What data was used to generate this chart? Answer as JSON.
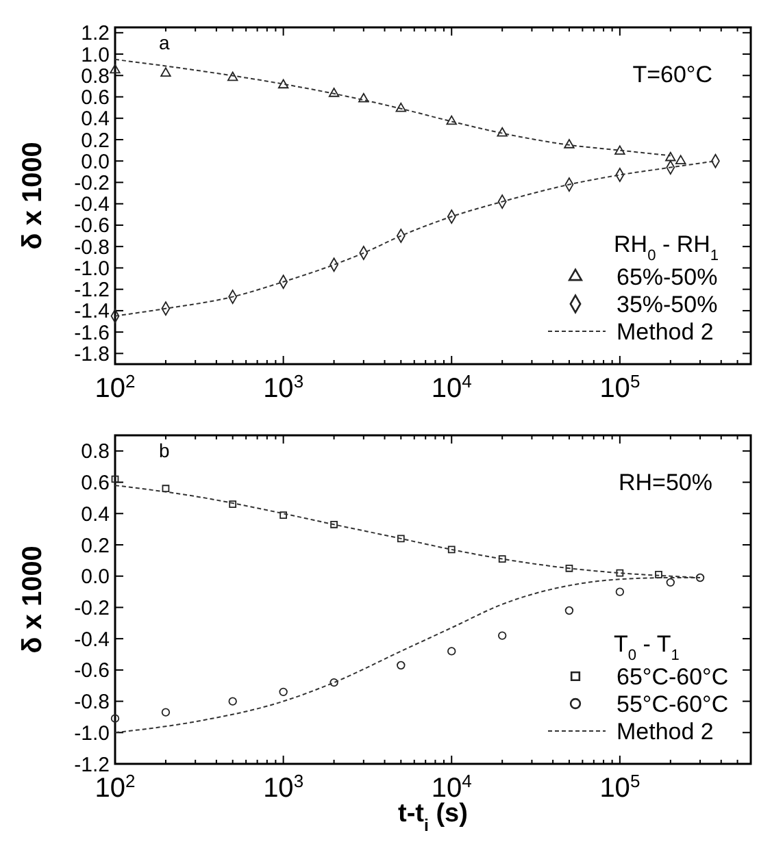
{
  "chart_data": [
    {
      "type": "scatter",
      "ylabel": "δ x 1000",
      "annotations": [
        "a",
        "T=60°C"
      ],
      "legend_title": "RH$_{0}$ - RH$_{1}$",
      "legend": "bottom right",
      "log": "x",
      "xlim": [
        100,
        600000
      ],
      "ylim": [
        -1.9,
        1.25
      ],
      "xticks": [
        {
          "value": 100,
          "label": "10$^{2}$"
        },
        {
          "value": 200,
          "label": null
        },
        {
          "value": 300,
          "label": null
        },
        {
          "value": 400,
          "label": null
        },
        {
          "value": 500,
          "label": null
        },
        {
          "value": 600,
          "label": null
        },
        {
          "value": 700,
          "label": null
        },
        {
          "value": 800,
          "label": null
        },
        {
          "value": 900,
          "label": null
        },
        {
          "value": 1000,
          "label": "10$^{3}$"
        },
        {
          "value": 2000,
          "label": null
        },
        {
          "value": 3000,
          "label": null
        },
        {
          "value": 4000,
          "label": null
        },
        {
          "value": 5000,
          "label": null
        },
        {
          "value": 6000,
          "label": null
        },
        {
          "value": 7000,
          "label": null
        },
        {
          "value": 8000,
          "label": null
        },
        {
          "value": 9000,
          "label": null
        },
        {
          "value": 10000,
          "label": "10$^{4}$"
        },
        {
          "value": 20000,
          "label": null
        },
        {
          "value": 30000,
          "label": null
        },
        {
          "value": 40000,
          "label": null
        },
        {
          "value": 50000,
          "label": null
        },
        {
          "value": 60000,
          "label": null
        },
        {
          "value": 70000,
          "label": null
        },
        {
          "value": 80000,
          "label": null
        },
        {
          "value": 90000,
          "label": null
        },
        {
          "value": 100000,
          "label": "10$^{5}$"
        },
        {
          "value": 200000,
          "label": null
        },
        {
          "value": 300000,
          "label": null
        },
        {
          "value": 400000,
          "label": null
        },
        {
          "value": 500000,
          "label": null
        },
        {
          "value": 600000,
          "label": null
        }
      ],
      "yticks": [
        1.2,
        {
          "value": 1,
          "label": "1.0"
        },
        0.8,
        0.6,
        0.4,
        0.2,
        {
          "value": 0,
          "label": "0.0"
        },
        -0.2,
        -0.4,
        -0.6,
        -0.8,
        {
          "value": -1,
          "label": "-1.0"
        },
        -1.2,
        -1.4,
        -1.6,
        -1.8
      ],
      "series": [
        {
          "name": "65%-50%",
          "type": "scatter",
          "marker": "triangle",
          "color": "#222222",
          "x": [
            100,
            200,
            500,
            1000,
            2000,
            3000,
            5000,
            10000,
            20000,
            50000,
            100000,
            200000,
            230000
          ],
          "values": [
            0.85,
            0.82,
            0.78,
            0.71,
            0.63,
            0.58,
            0.49,
            0.37,
            0.26,
            0.15,
            0.09,
            0.03,
            0.0
          ]
        },
        {
          "name": "35%-50%",
          "type": "scatter",
          "marker": "diamond",
          "color": "#222222",
          "x": [
            100,
            200,
            500,
            1000,
            2000,
            3000,
            5000,
            10000,
            20000,
            50000,
            100000,
            200000,
            370000
          ],
          "values": [
            -1.45,
            -1.38,
            -1.27,
            -1.13,
            -0.97,
            -0.86,
            -0.7,
            -0.52,
            -0.38,
            -0.22,
            -0.13,
            -0.06,
            0.0
          ]
        },
        {
          "name": "Method 2",
          "type": "line",
          "line_style": "dashed",
          "color": "#333333",
          "x": [
            100,
            300,
            1000,
            2000,
            5000,
            10000,
            20000,
            50000,
            100000,
            200000
          ],
          "values": [
            0.95,
            0.85,
            0.72,
            0.63,
            0.49,
            0.37,
            0.26,
            0.15,
            0.1,
            0.05
          ]
        },
        {
          "type": "line",
          "line_style": "dashed",
          "color": "#333333",
          "x": [
            100,
            200,
            500,
            1000,
            2000,
            3000,
            5000,
            10000,
            20000,
            50000,
            100000,
            200000,
            370000
          ],
          "values": [
            -1.45,
            -1.38,
            -1.27,
            -1.13,
            -0.97,
            -0.86,
            -0.7,
            -0.52,
            -0.38,
            -0.22,
            -0.13,
            -0.06,
            0.0
          ]
        }
      ]
    },
    {
      "type": "scatter",
      "xlabel": "t-t$_{i}$ (s)",
      "ylabel": "δ x 1000",
      "annotations": [
        "b",
        "RH=50%"
      ],
      "legend_title": "T$_{0}$ - T$_{1}$",
      "legend": "bottom right",
      "log": "x",
      "xlim": [
        100,
        600000
      ],
      "ylim": [
        -1.2,
        0.9
      ],
      "xticks": [
        {
          "value": 100,
          "label": "10$^{2}$"
        },
        {
          "value": 200,
          "label": null
        },
        {
          "value": 300,
          "label": null
        },
        {
          "value": 400,
          "label": null
        },
        {
          "value": 500,
          "label": null
        },
        {
          "value": 600,
          "label": null
        },
        {
          "value": 700,
          "label": null
        },
        {
          "value": 800,
          "label": null
        },
        {
          "value": 900,
          "label": null
        },
        {
          "value": 1000,
          "label": "10$^{3}$"
        },
        {
          "value": 2000,
          "label": null
        },
        {
          "value": 3000,
          "label": null
        },
        {
          "value": 4000,
          "label": null
        },
        {
          "value": 5000,
          "label": null
        },
        {
          "value": 6000,
          "label": null
        },
        {
          "value": 7000,
          "label": null
        },
        {
          "value": 8000,
          "label": null
        },
        {
          "value": 9000,
          "label": null
        },
        {
          "value": 10000,
          "label": "10$^{4}$"
        },
        {
          "value": 20000,
          "label": null
        },
        {
          "value": 30000,
          "label": null
        },
        {
          "value": 40000,
          "label": null
        },
        {
          "value": 50000,
          "label": null
        },
        {
          "value": 60000,
          "label": null
        },
        {
          "value": 70000,
          "label": null
        },
        {
          "value": 80000,
          "label": null
        },
        {
          "value": 90000,
          "label": null
        },
        {
          "value": 100000,
          "label": "10$^{5}$"
        },
        {
          "value": 200000,
          "label": null
        },
        {
          "value": 300000,
          "label": null
        },
        {
          "value": 400000,
          "label": null
        },
        {
          "value": 500000,
          "label": null
        },
        {
          "value": 600000,
          "label": null
        }
      ],
      "yticks": [
        0.8,
        0.6,
        0.4,
        0.2,
        {
          "value": 0,
          "label": "0.0"
        },
        -0.2,
        -0.4,
        -0.6,
        -0.8,
        {
          "value": -1,
          "label": "-1.0"
        },
        -1.2
      ],
      "series": [
        {
          "name": "65°C-60°C",
          "type": "scatter",
          "marker": "square",
          "color": "#222222",
          "x": [
            100,
            200,
            500,
            1000,
            2000,
            5000,
            10000,
            20000,
            50000,
            100000,
            170000
          ],
          "values": [
            0.62,
            0.56,
            0.46,
            0.39,
            0.33,
            0.24,
            0.17,
            0.11,
            0.05,
            0.02,
            0.01
          ]
        },
        {
          "name": "55°C-60°C",
          "type": "scatter",
          "marker": "circle",
          "color": "#222222",
          "x": [
            100,
            200,
            500,
            1000,
            2000,
            5000,
            10000,
            20000,
            50000,
            100000,
            200000,
            300000
          ],
          "values": [
            -0.91,
            -0.87,
            -0.8,
            -0.74,
            -0.68,
            -0.57,
            -0.48,
            -0.38,
            -0.22,
            -0.1,
            -0.04,
            -0.01
          ]
        },
        {
          "name": "Method 2",
          "type": "line",
          "line_style": "dashed",
          "color": "#333333",
          "x": [
            100,
            300,
            1000,
            2000,
            5000,
            10000,
            20000,
            50000,
            100000,
            200000,
            300000
          ],
          "values": [
            0.58,
            0.51,
            0.4,
            0.33,
            0.24,
            0.17,
            0.11,
            0.05,
            0.02,
            0.0,
            -0.01
          ]
        },
        {
          "type": "line",
          "line_style": "dashed",
          "color": "#333333",
          "x": [
            100,
            300,
            1000,
            2000,
            5000,
            10000,
            20000,
            50000,
            100000,
            200000,
            300000
          ],
          "values": [
            -1.0,
            -0.93,
            -0.8,
            -0.68,
            -0.48,
            -0.33,
            -0.18,
            -0.06,
            -0.02,
            -0.01,
            -0.01
          ]
        }
      ]
    }
  ]
}
